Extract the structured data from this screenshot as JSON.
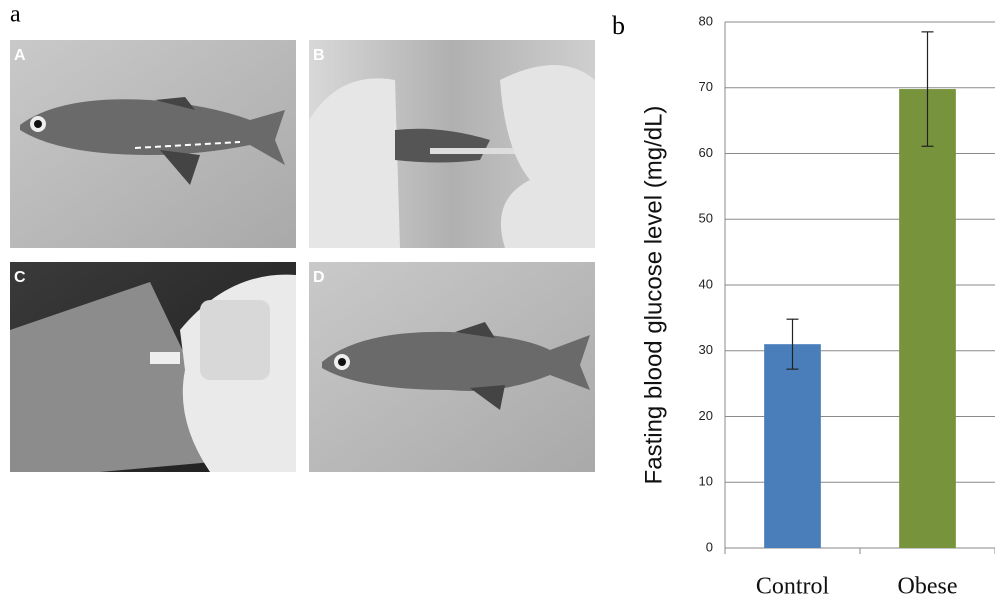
{
  "figure_labels": {
    "a": "a",
    "b": "b"
  },
  "photo_labels": [
    "A",
    "B",
    "C",
    "D"
  ],
  "chart_data": {
    "type": "bar",
    "y_label": "Fasting blood glucose level (mg/dL)",
    "categories": [
      "Control",
      "Obese"
    ],
    "values": [
      31,
      69.8
    ],
    "errors": [
      3.8,
      8.7
    ],
    "colors": [
      "#4a7ebb",
      "#77933c"
    ],
    "ylim": [
      0,
      80
    ],
    "yticks": [
      0,
      10,
      20,
      30,
      40,
      50,
      60,
      70,
      80
    ],
    "grid": true
  }
}
